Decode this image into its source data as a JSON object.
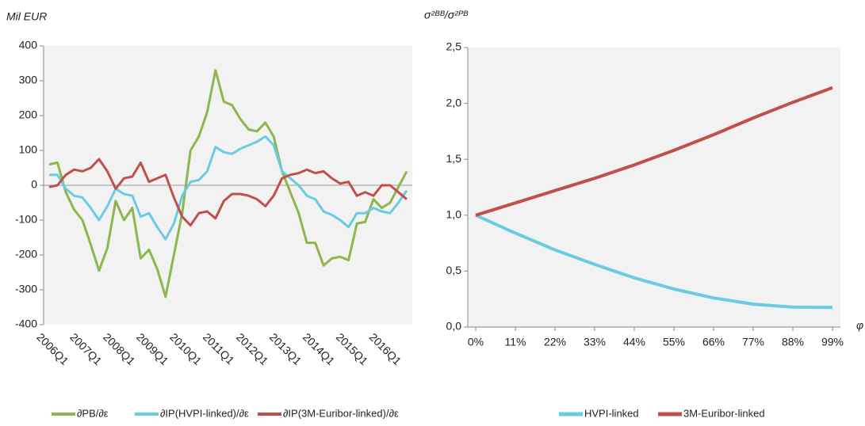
{
  "chart_data": [
    {
      "type": "line",
      "y_label": "Mil EUR",
      "categories": [
        "2006Q1",
        null,
        null,
        null,
        "2007Q1",
        null,
        null,
        null,
        "2008Q1",
        null,
        null,
        null,
        "2009Q1",
        null,
        null,
        null,
        "2010Q1",
        null,
        null,
        null,
        "2011Q1",
        null,
        null,
        null,
        "2012Q1",
        null,
        null,
        null,
        "2013Q1",
        null,
        null,
        null,
        "2014Q1",
        null,
        null,
        null,
        "2015Q1",
        null,
        null,
        null,
        "2016Q1",
        null,
        null,
        null
      ],
      "ylim": [
        -400,
        400
      ],
      "yticks": [
        -400,
        -300,
        -200,
        -100,
        0,
        100,
        200,
        300,
        400
      ],
      "zero_line": true,
      "series": [
        {
          "name": "∂PB/∂ε",
          "color": "#8db64b",
          "values": [
            60,
            65,
            -20,
            -70,
            -100,
            -170,
            -245,
            -180,
            -45,
            -100,
            -65,
            -210,
            -185,
            -240,
            -320,
            -200,
            -80,
            100,
            140,
            210,
            330,
            240,
            230,
            190,
            160,
            155,
            180,
            140,
            40,
            -20,
            -80,
            -165,
            -165,
            -230,
            -210,
            -205,
            -215,
            -110,
            -105,
            -40,
            -65,
            -50,
            -5,
            40
          ]
        },
        {
          "name": "∂IP(HVPI-linked)/∂ε",
          "color": "#6ccbe4",
          "values": [
            30,
            30,
            -10,
            -30,
            -35,
            -65,
            -100,
            -60,
            -10,
            -25,
            -30,
            -90,
            -80,
            -120,
            -155,
            -110,
            -30,
            10,
            15,
            40,
            110,
            95,
            90,
            105,
            115,
            125,
            140,
            115,
            40,
            20,
            0,
            -30,
            -40,
            -75,
            -85,
            -100,
            -120,
            -80,
            -80,
            -65,
            -75,
            -80,
            -50,
            -15
          ]
        },
        {
          "name": "∂IP(3M-Euribor-linked)/∂ε",
          "color": "#c0504d",
          "values": [
            -5,
            0,
            30,
            45,
            40,
            50,
            75,
            40,
            -10,
            20,
            25,
            65,
            10,
            20,
            30,
            -35,
            -90,
            -115,
            -80,
            -75,
            -95,
            -45,
            -25,
            -25,
            -30,
            -40,
            -60,
            -30,
            20,
            30,
            35,
            45,
            35,
            40,
            20,
            5,
            10,
            -30,
            -20,
            -30,
            0,
            0,
            -20,
            -40
          ]
        }
      ]
    },
    {
      "type": "line",
      "y_label": "σ²ᴮᴮ/σ²ᴾᴮ",
      "x_label": "φ",
      "x": [
        0,
        11,
        22,
        33,
        44,
        55,
        66,
        77,
        88,
        99
      ],
      "xlim": [
        0,
        99
      ],
      "xticks": [
        {
          "value": 0,
          "label": "0%"
        },
        {
          "value": 11,
          "label": "11%"
        },
        {
          "value": 22,
          "label": "22%"
        },
        {
          "value": 33,
          "label": "33%"
        },
        {
          "value": 44,
          "label": "44%"
        },
        {
          "value": 55,
          "label": "55%"
        },
        {
          "value": 66,
          "label": "66%"
        },
        {
          "value": 77,
          "label": "77%"
        },
        {
          "value": 88,
          "label": "88%"
        },
        {
          "value": 99,
          "label": "99%"
        }
      ],
      "ylim": [
        0,
        2.5
      ],
      "yticks": [
        {
          "value": 0,
          "label": "0,0"
        },
        {
          "value": 0.5,
          "label": "0,5"
        },
        {
          "value": 1,
          "label": "1,0"
        },
        {
          "value": 1.5,
          "label": "1,5"
        },
        {
          "value": 2,
          "label": "2,0"
        },
        {
          "value": 2.5,
          "label": "2,5"
        }
      ],
      "series": [
        {
          "name": "HVPI-linked",
          "color": "#6ccbe4",
          "values": [
            1.0,
            0.84,
            0.69,
            0.56,
            0.44,
            0.34,
            0.26,
            0.205,
            0.178,
            0.175
          ]
        },
        {
          "name": "3M-Euribor-linked",
          "color": "#c0504d",
          "values": [
            1.0,
            1.11,
            1.22,
            1.33,
            1.45,
            1.58,
            1.72,
            1.87,
            2.01,
            2.14
          ]
        }
      ]
    }
  ]
}
